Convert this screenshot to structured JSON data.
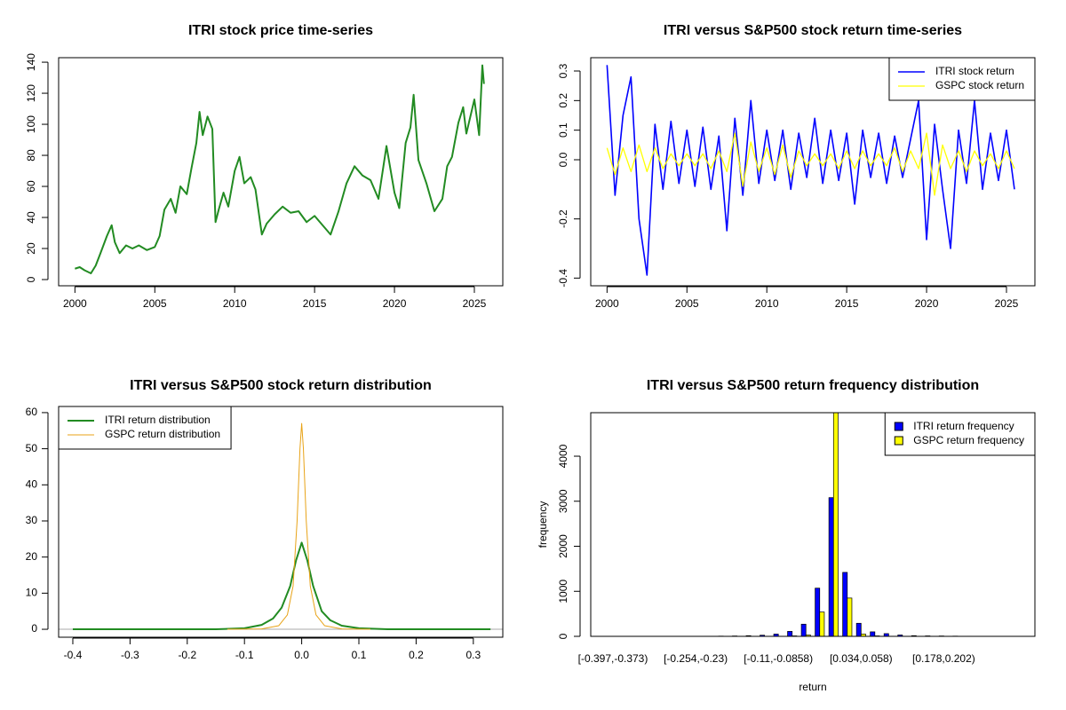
{
  "chart_data": [
    {
      "type": "line",
      "title": "ITRI stock price time-series",
      "color": "#228b22",
      "x": [
        2000.0,
        2000.3,
        2000.6,
        2001.0,
        2001.3,
        2001.6,
        2002.0,
        2002.3,
        2002.5,
        2002.8,
        2003.2,
        2003.6,
        2004.0,
        2004.5,
        2005.0,
        2005.3,
        2005.6,
        2006.0,
        2006.3,
        2006.6,
        2007.0,
        2007.3,
        2007.6,
        2007.8,
        2008.0,
        2008.3,
        2008.6,
        2008.8,
        2009.0,
        2009.3,
        2009.6,
        2010.0,
        2010.3,
        2010.6,
        2011.0,
        2011.3,
        2011.7,
        2012.0,
        2012.5,
        2013.0,
        2013.5,
        2014.0,
        2014.5,
        2015.0,
        2015.5,
        2016.0,
        2016.5,
        2017.0,
        2017.5,
        2018.0,
        2018.5,
        2019.0,
        2019.5,
        2020.0,
        2020.3,
        2020.7,
        2021.0,
        2021.2,
        2021.5,
        2022.0,
        2022.5,
        2023.0,
        2023.3,
        2023.6,
        2024.0,
        2024.3,
        2024.5,
        2025.0,
        2025.3,
        2025.5,
        2025.6
      ],
      "values": [
        7,
        8,
        6,
        4,
        9,
        17,
        28,
        35,
        24,
        17,
        22,
        20,
        22,
        19,
        21,
        28,
        45,
        52,
        43,
        60,
        55,
        72,
        88,
        108,
        93,
        105,
        97,
        37,
        45,
        56,
        47,
        70,
        79,
        62,
        66,
        58,
        29,
        36,
        42,
        47,
        43,
        44,
        37,
        41,
        35,
        29,
        44,
        62,
        73,
        67,
        64,
        52,
        86,
        56,
        46,
        88,
        98,
        119,
        77,
        62,
        44,
        52,
        73,
        79,
        101,
        111,
        94,
        116,
        93,
        138,
        126
      ],
      "xlim": [
        1998.98,
        2026.78
      ],
      "ylim": [
        -4.0,
        142.9
      ],
      "xticks": [
        2000,
        2005,
        2010,
        2015,
        2020,
        2025
      ],
      "yticks": [
        0,
        20,
        40,
        60,
        80,
        100,
        120,
        140
      ]
    },
    {
      "type": "line",
      "title": "ITRI versus S&P500 stock return time-series",
      "legend": "topright",
      "x": [
        2000,
        2000.5,
        2001,
        2001.5,
        2002,
        2002.5,
        2003,
        2003.5,
        2004,
        2004.5,
        2005,
        2005.5,
        2006,
        2006.5,
        2007,
        2007.5,
        2008,
        2008.5,
        2009,
        2009.5,
        2010,
        2010.5,
        2011,
        2011.5,
        2012,
        2012.5,
        2013,
        2013.5,
        2014,
        2014.5,
        2015,
        2015.5,
        2016,
        2016.5,
        2017,
        2017.5,
        2018,
        2018.5,
        2019,
        2019.5,
        2020,
        2020.5,
        2021,
        2021.5,
        2022,
        2022.5,
        2023,
        2023.5,
        2024,
        2024.5,
        2025,
        2025.5
      ],
      "series": [
        {
          "name": "ITRI stock return",
          "color": "#0000ff",
          "values": [
            0.32,
            -0.12,
            0.15,
            0.28,
            -0.2,
            -0.39,
            0.12,
            -0.1,
            0.13,
            -0.08,
            0.1,
            -0.09,
            0.11,
            -0.1,
            0.08,
            -0.24,
            0.14,
            -0.12,
            0.2,
            -0.08,
            0.1,
            -0.07,
            0.1,
            -0.1,
            0.09,
            -0.06,
            0.14,
            -0.08,
            0.1,
            -0.07,
            0.09,
            -0.15,
            0.1,
            -0.06,
            0.09,
            -0.08,
            0.08,
            -0.06,
            0.07,
            0.2,
            -0.27,
            0.12,
            -0.1,
            -0.3,
            0.1,
            -0.08,
            0.2,
            -0.1,
            0.09,
            -0.07,
            0.1,
            -0.1
          ]
        },
        {
          "name": "GSPC stock return",
          "color": "#ffff00",
          "values": [
            0.04,
            -0.05,
            0.04,
            -0.04,
            0.05,
            -0.04,
            0.04,
            -0.03,
            0.02,
            -0.02,
            0.02,
            -0.02,
            0.02,
            -0.03,
            0.03,
            -0.04,
            0.09,
            -0.09,
            0.06,
            -0.04,
            0.04,
            -0.05,
            0.05,
            -0.06,
            0.03,
            -0.02,
            0.02,
            -0.02,
            0.02,
            -0.03,
            0.03,
            -0.03,
            0.03,
            -0.02,
            0.02,
            -0.02,
            0.04,
            -0.04,
            0.03,
            -0.03,
            0.09,
            -0.12,
            0.05,
            -0.03,
            0.03,
            -0.04,
            0.03,
            -0.02,
            0.02,
            -0.03,
            0.03,
            -0.03
          ]
        }
      ],
      "xlim": [
        1998.98,
        2026.78
      ],
      "ylim": [
        -0.426,
        0.345
      ],
      "xticks": [
        2000,
        2005,
        2010,
        2015,
        2020,
        2025
      ],
      "yticks": [
        -0.4,
        -0.2,
        {
          "value": 0,
          "label": "0.0"
        },
        0.1,
        0.2,
        0.3
      ]
    },
    {
      "type": "line",
      "title": "ITRI versus S&P500 stock return distribution",
      "legend": "topleft",
      "hline": 0,
      "series": [
        {
          "name": "ITRI return distribution",
          "color": "#228b22",
          "x": [
            -0.4,
            -0.15,
            -0.1,
            -0.07,
            -0.05,
            -0.035,
            -0.02,
            -0.01,
            0,
            0.01,
            0.02,
            0.035,
            0.05,
            0.07,
            0.1,
            0.15,
            0.33
          ],
          "values": [
            0,
            0,
            0.3,
            1.2,
            3,
            6,
            12,
            19,
            24,
            19,
            12,
            5,
            2.5,
            1,
            0.3,
            0,
            0
          ]
        },
        {
          "name": "GSPC return distribution",
          "color": "#e8a317",
          "x": [
            -0.13,
            -0.07,
            -0.04,
            -0.025,
            -0.015,
            -0.008,
            -0.003,
            0,
            0.003,
            0.008,
            0.015,
            0.025,
            0.04,
            0.07,
            0.12
          ],
          "values": [
            0,
            0.1,
            1,
            4,
            12,
            30,
            50,
            57,
            50,
            30,
            12,
            4,
            1,
            0.1,
            0
          ]
        }
      ],
      "xlim": [
        -0.4248,
        0.3515
      ],
      "ylim": [
        -2.2,
        61.7
      ],
      "xticks": [
        -0.4,
        -0.3,
        -0.2,
        -0.1,
        {
          "value": 0,
          "label": "0.0"
        },
        0.1,
        0.2,
        0.3
      ],
      "yticks": [
        0,
        10,
        20,
        30,
        40,
        50,
        60
      ]
    },
    {
      "type": "bar",
      "title": "ITRI versus S&P500 return frequency distribution",
      "legend": "topright",
      "xlabel": "return",
      "ylabel": "frequency",
      "categories": [
        "[-0.397,-0.373)",
        null,
        null,
        null,
        null,
        null,
        "[-0.254,-0.23)",
        null,
        null,
        null,
        null,
        null,
        "[-0.11,-0.0858)",
        null,
        null,
        null,
        null,
        null,
        "[0.034,0.058)",
        null,
        null,
        null,
        null,
        null,
        "[0.178,0.202)",
        null,
        null,
        null,
        null,
        null
      ],
      "series": [
        {
          "name": "ITRI return frequency",
          "color": "#0000ff",
          "values": [
            1,
            0,
            0,
            0,
            0,
            1,
            2,
            3,
            5,
            8,
            15,
            25,
            50,
            110,
            270,
            1070,
            3080,
            1420,
            290,
            100,
            60,
            30,
            15,
            10,
            8,
            5,
            3,
            2,
            1,
            1
          ]
        },
        {
          "name": "GSPC return frequency",
          "color": "#ffff00",
          "values": [
            0,
            0,
            0,
            0,
            0,
            0,
            0,
            0,
            0,
            0,
            0,
            0,
            2,
            10,
            30,
            540,
            5000,
            850,
            50,
            10,
            3,
            1,
            0,
            0,
            0,
            0,
            0,
            0,
            0,
            0
          ]
        }
      ],
      "ylim": [
        0,
        4966
      ],
      "yticks": [
        0,
        1000,
        2000,
        3000,
        4000
      ]
    }
  ]
}
